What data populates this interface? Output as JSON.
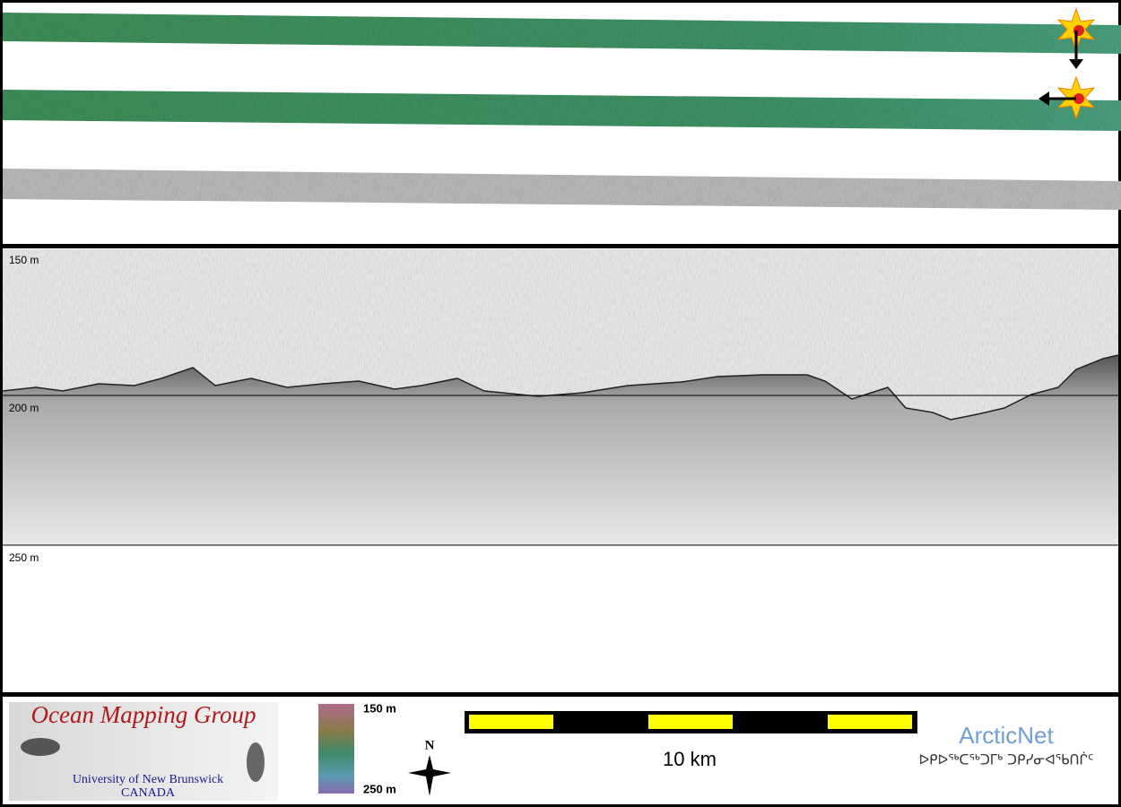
{
  "swaths": {
    "count_label": null
  },
  "profile": {
    "depth_labels": [
      "150 m",
      "200 m",
      "250 m"
    ]
  },
  "footer": {
    "logo": {
      "title": "Ocean Mapping Group",
      "university": "University of New Brunswick",
      "country": "CANADA"
    },
    "colorbar": {
      "top": "150 m",
      "bottom": "250 m"
    },
    "compass": "N",
    "scale_bar": "10 km",
    "partner": {
      "name": "ArcticNet",
      "syllabics": "ᐅᑭᐅᖅᑕᖅᑐᒥᒃ ᑐᑭᓯᓂᐊᖃᑎᒌᑦ"
    }
  }
}
